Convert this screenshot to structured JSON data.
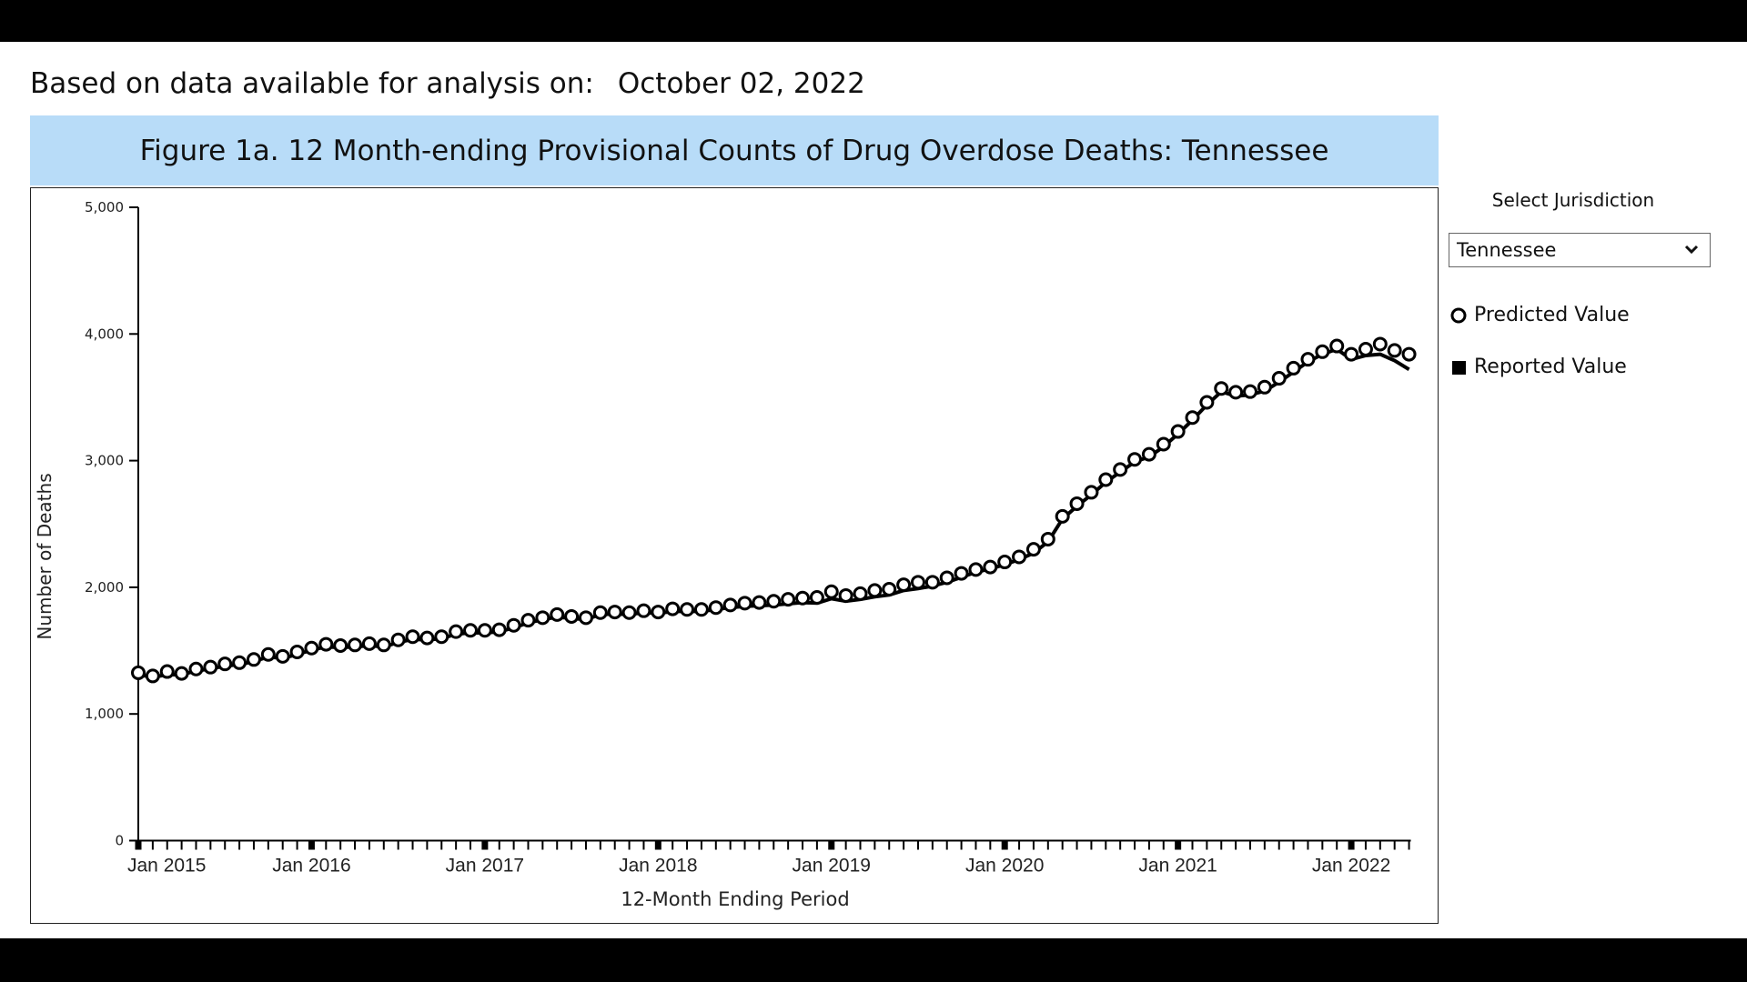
{
  "header": {
    "as_of_label": "Based on data available for analysis on:",
    "as_of_date": "October 02, 2022"
  },
  "figure_title": "Figure 1a. 12 Month-ending Provisional Counts of Drug Overdose Deaths: Tennessee",
  "controls": {
    "select_label": "Select Jurisdiction",
    "selected_jurisdiction": "Tennessee"
  },
  "legend": {
    "predicted": "Predicted Value",
    "reported": "Reported Value"
  },
  "colors": {
    "title_band": "#b8dcf8",
    "series": "#000000"
  },
  "chart_data": {
    "type": "line",
    "title": "Figure 1a. 12 Month-ending Provisional Counts of Drug Overdose Deaths: Tennessee",
    "xlabel": "12-Month Ending Period",
    "ylabel": "Number of Deaths",
    "ylim": [
      0,
      5000
    ],
    "yticks": [
      "0",
      "1,000",
      "2,000",
      "3,000",
      "4,000",
      "5,000"
    ],
    "xticks": [
      "Jan 2015",
      "Jan 2016",
      "Jan 2017",
      "Jan 2018",
      "Jan 2019",
      "Jan 2020",
      "Jan 2021",
      "Jan 2022"
    ],
    "x_start": "2015-01",
    "x_end": "2022-05",
    "x_interval": "month",
    "grid": false,
    "legend_position": "right",
    "series": [
      {
        "name": "Predicted Value",
        "marker": "open-circle",
        "values": [
          1325,
          1300,
          1335,
          1320,
          1355,
          1370,
          1395,
          1405,
          1430,
          1470,
          1455,
          1490,
          1520,
          1550,
          1540,
          1545,
          1555,
          1545,
          1585,
          1610,
          1600,
          1610,
          1650,
          1660,
          1660,
          1665,
          1700,
          1740,
          1760,
          1785,
          1770,
          1760,
          1800,
          1805,
          1800,
          1815,
          1805,
          1830,
          1825,
          1825,
          1840,
          1860,
          1875,
          1880,
          1890,
          1905,
          1915,
          1920,
          1965,
          1935,
          1950,
          1975,
          1985,
          2020,
          2040,
          2040,
          2075,
          2110,
          2140,
          2160,
          2200,
          2240,
          2300,
          2380,
          2560,
          2660,
          2750,
          2850,
          2930,
          3010,
          3050,
          3130,
          3230,
          3340,
          3460,
          3570,
          3540,
          3545,
          3580,
          3650,
          3730,
          3800,
          3860,
          3905,
          3840,
          3880,
          3920,
          3870,
          3840
        ]
      },
      {
        "name": "Reported Value",
        "marker": "line",
        "values": [
          1310,
          1290,
          1310,
          1310,
          1340,
          1355,
          1380,
          1390,
          1415,
          1450,
          1440,
          1470,
          1505,
          1530,
          1525,
          1530,
          1540,
          1530,
          1565,
          1590,
          1585,
          1595,
          1630,
          1640,
          1640,
          1650,
          1680,
          1720,
          1745,
          1765,
          1755,
          1745,
          1785,
          1790,
          1785,
          1800,
          1795,
          1810,
          1810,
          1810,
          1825,
          1840,
          1850,
          1855,
          1860,
          1870,
          1880,
          1875,
          1910,
          1890,
          1905,
          1925,
          1940,
          1975,
          1990,
          2010,
          2040,
          2080,
          2120,
          2145,
          2180,
          2220,
          2270,
          2360,
          2540,
          2640,
          2730,
          2830,
          2910,
          2990,
          3030,
          3110,
          3210,
          3320,
          3440,
          3545,
          3510,
          3520,
          3550,
          3620,
          3700,
          3780,
          3840,
          3880,
          3800,
          3830,
          3840,
          3790,
          3720
        ]
      }
    ]
  }
}
